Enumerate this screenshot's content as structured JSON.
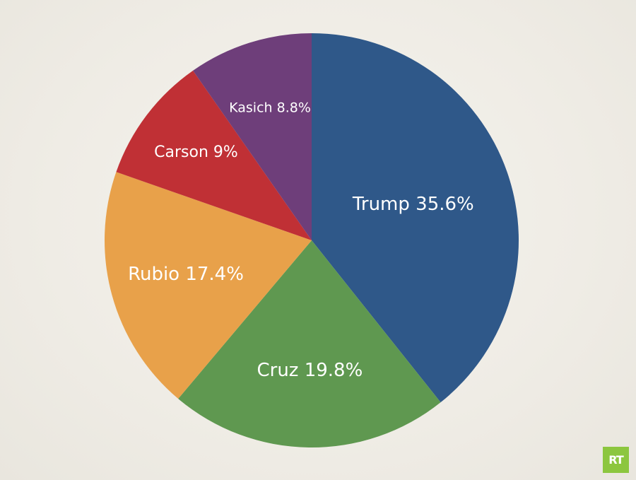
{
  "chart_data": {
    "type": "pie",
    "title": "",
    "start": "top, clockwise",
    "slices": [
      {
        "label": "Trump 35.6%",
        "name": "Trump",
        "value": 35.6,
        "color": "#2f5889"
      },
      {
        "label": "Cruz 19.8%",
        "name": "Cruz",
        "value": 19.8,
        "color": "#5f9850"
      },
      {
        "label": "Rubio 17.4%",
        "name": "Rubio",
        "value": 17.4,
        "color": "#e8a14a"
      },
      {
        "label": "Carson 9%",
        "name": "Carson",
        "value": 9.0,
        "color": "#c03035"
      },
      {
        "label": "Kasich 8.8%",
        "name": "Kasich",
        "value": 8.8,
        "color": "#6e3e7a"
      }
    ]
  },
  "logo": {
    "text": "RT",
    "color": "#8cc63f"
  }
}
